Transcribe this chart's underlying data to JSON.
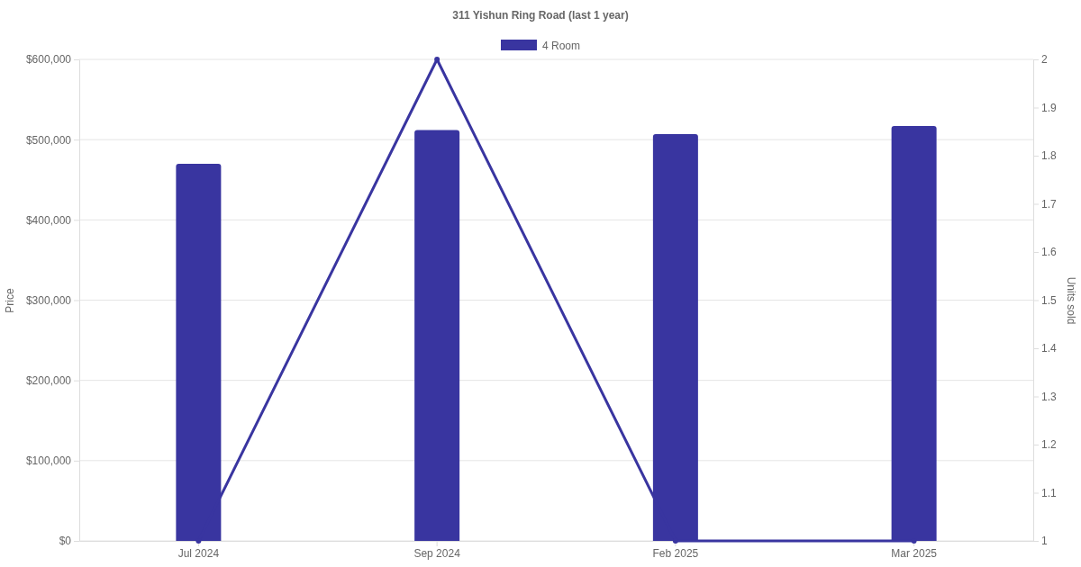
{
  "chart_data": {
    "type": "bar",
    "title": "311 Yishun Ring Road (last 1 year)",
    "ylabel": "Price",
    "y2label": "Units sold",
    "categories": [
      "Jul 2024",
      "Sep 2024",
      "Feb 2025",
      "Mar 2025"
    ],
    "series": [
      {
        "name": "4 Room",
        "color": "#3935a0",
        "values": [
          470000,
          512000,
          507000,
          517000
        ]
      },
      {
        "type": "line",
        "axis": "y2",
        "color": "#3935a0",
        "values": [
          1,
          2,
          1,
          1
        ]
      }
    ],
    "ylim": [
      0,
      600000
    ],
    "yticks": [
      {
        "value": 0,
        "label": "$0"
      },
      {
        "value": 100000,
        "label": "$100,000"
      },
      {
        "value": 200000,
        "label": "$200,000"
      },
      {
        "value": 300000,
        "label": "$300,000"
      },
      {
        "value": 400000,
        "label": "$400,000"
      },
      {
        "value": 500000,
        "label": "$500,000"
      },
      {
        "value": 600000,
        "label": "$600,000"
      }
    ],
    "y2lim": [
      1,
      2
    ],
    "y2ticks": [
      1,
      1.1,
      1.2,
      1.3,
      1.4,
      1.5,
      1.6,
      1.7,
      1.8,
      1.9,
      2
    ],
    "grid": "y",
    "legend": "top",
    "marker": "circle"
  }
}
